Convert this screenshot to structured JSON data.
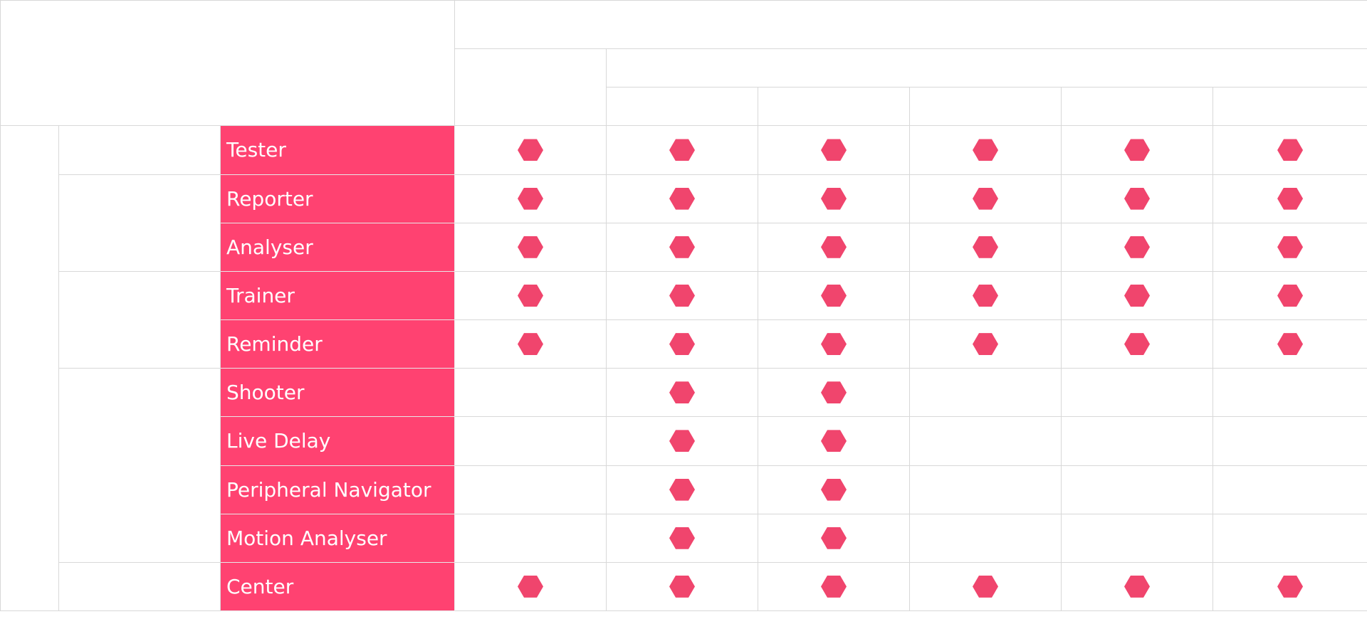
{
  "colors": {
    "feature_background": "#ff4271",
    "mark": "#f0456d",
    "grid_line": "#d8d8d8"
  },
  "mark_icon": "hexagon-icon",
  "columns": 6,
  "rows": [
    {
      "feature": "Tester",
      "marks": [
        true,
        true,
        true,
        true,
        true,
        true
      ]
    },
    {
      "feature": "Reporter",
      "marks": [
        true,
        true,
        true,
        true,
        true,
        true
      ]
    },
    {
      "feature": "Analyser",
      "marks": [
        true,
        true,
        true,
        true,
        true,
        true
      ]
    },
    {
      "feature": "Trainer",
      "marks": [
        true,
        true,
        true,
        true,
        true,
        true
      ]
    },
    {
      "feature": "Reminder",
      "marks": [
        true,
        true,
        true,
        true,
        true,
        true
      ]
    },
    {
      "feature": "Shooter",
      "marks": [
        false,
        true,
        true,
        false,
        false,
        false
      ]
    },
    {
      "feature": "Live Delay",
      "marks": [
        false,
        true,
        true,
        false,
        false,
        false
      ]
    },
    {
      "feature": "Peripheral Navigator",
      "marks": [
        false,
        true,
        true,
        false,
        false,
        false
      ]
    },
    {
      "feature": "Motion Analyser",
      "marks": [
        false,
        true,
        true,
        false,
        false,
        false
      ]
    },
    {
      "feature": "Center",
      "marks": [
        true,
        true,
        true,
        true,
        true,
        true
      ]
    }
  ]
}
